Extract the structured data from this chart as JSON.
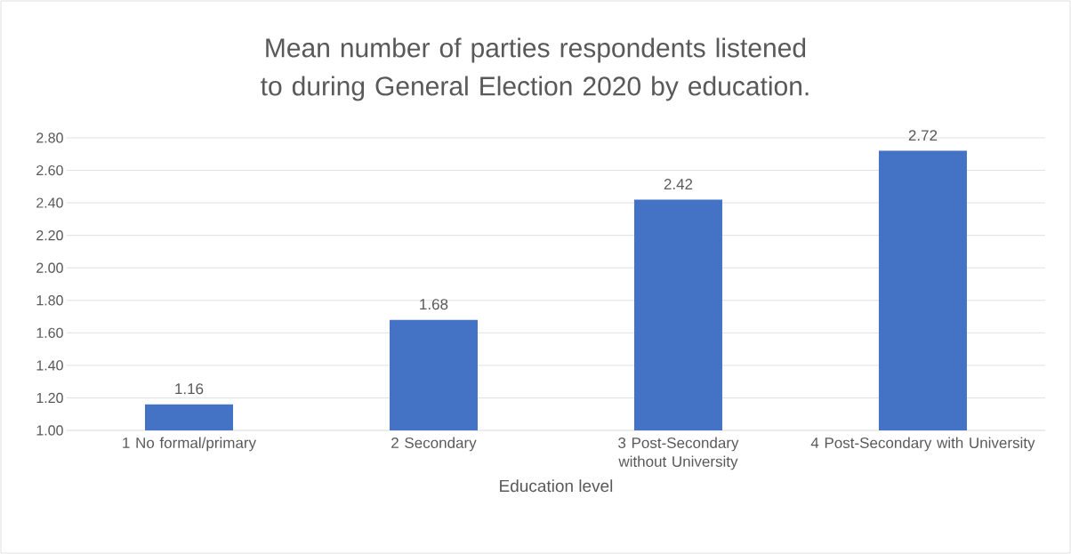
{
  "chart_data": {
    "type": "bar",
    "title": "Mean number of parties respondents listened to during General Election 2020 by education.",
    "xlabel": "Education level",
    "categories": [
      "1 No formal/primary",
      "2 Secondary",
      "3 Post-Secondary without University",
      "4 Post-Secondary with University"
    ],
    "values": [
      1.16,
      1.68,
      2.42,
      2.72
    ],
    "color": "#4472c4",
    "ylim": [
      1.0,
      2.8
    ],
    "yticks": [
      {
        "value": 1.0,
        "label": "1.00"
      },
      {
        "value": 1.2,
        "label": "1.20"
      },
      {
        "value": 1.4,
        "label": "1.40"
      },
      {
        "value": 1.6,
        "label": "1.60"
      },
      {
        "value": 1.8,
        "label": "1.80"
      },
      {
        "value": 2.0,
        "label": "2.00"
      },
      {
        "value": 2.2,
        "label": "2.20"
      },
      {
        "value": 2.4,
        "label": "2.40"
      },
      {
        "value": 2.6,
        "label": "2.60"
      },
      {
        "value": 2.8,
        "label": "2.80"
      }
    ],
    "grid": "y",
    "data_labels": true
  }
}
